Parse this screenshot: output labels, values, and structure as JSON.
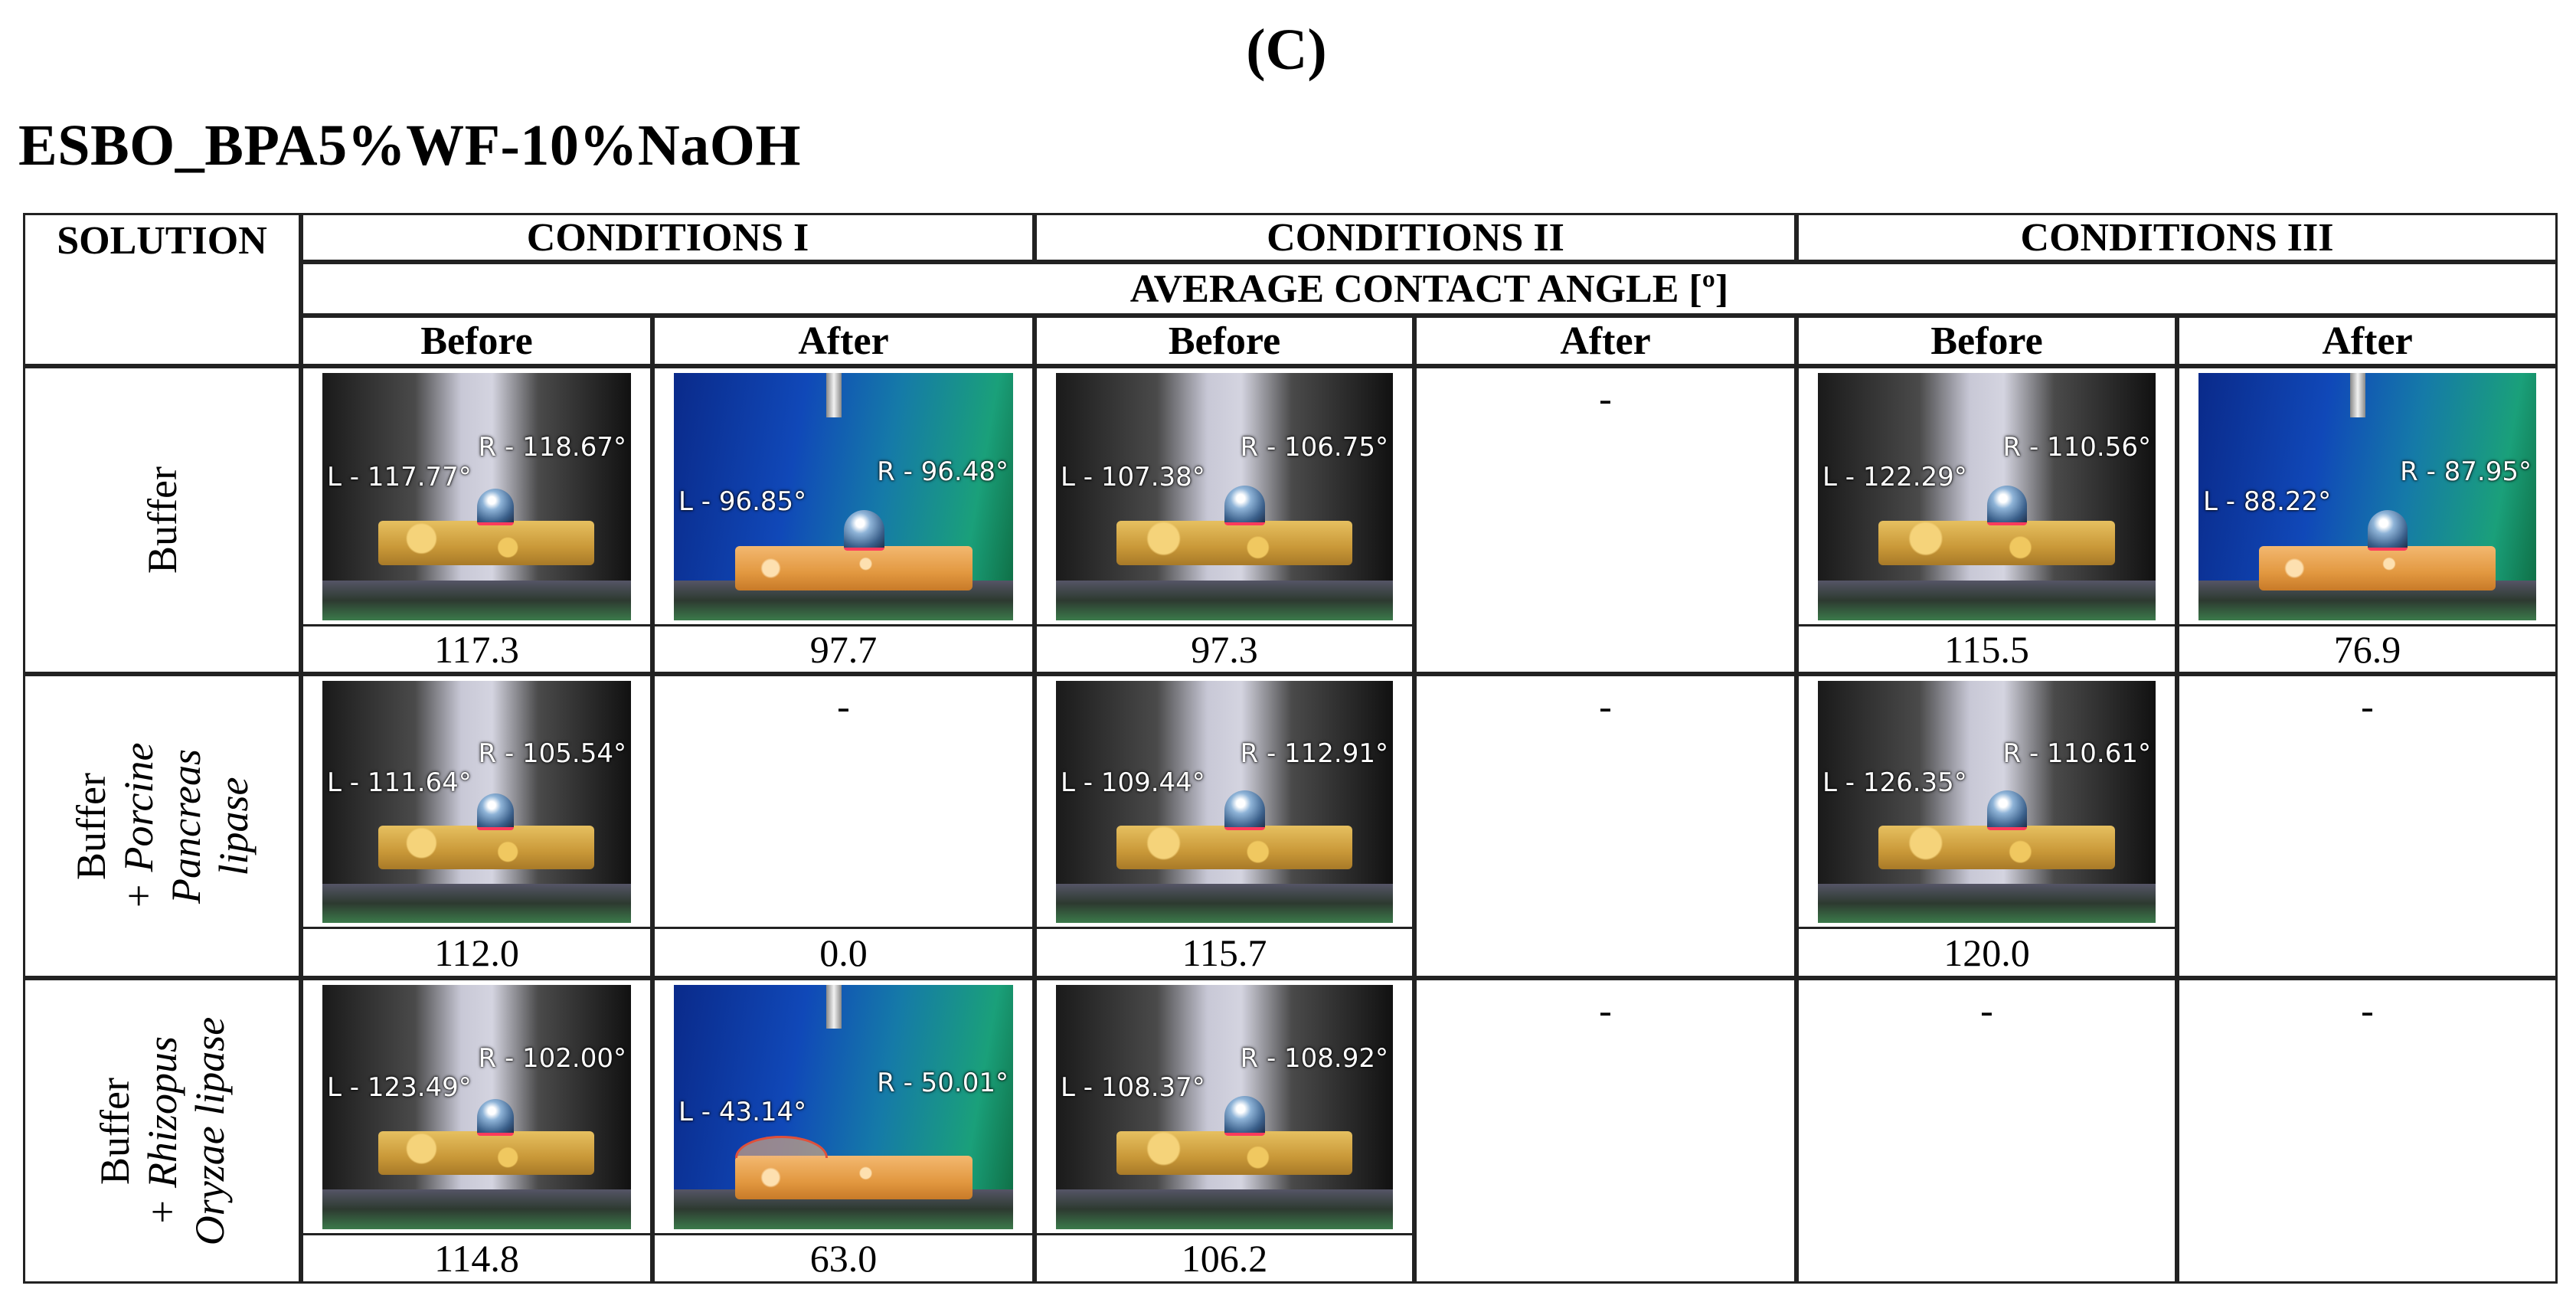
{
  "panel_label": "(C)",
  "title": "ESBO_BPA5%WF-10%NaOH",
  "table": {
    "headers": {
      "solution": "SOLUTION",
      "conditions": [
        "CONDITIONS I",
        "CONDITIONS II",
        "CONDITIONS III"
      ],
      "metric": "AVERAGE CONTACT ANGLE [º]",
      "before": "Before",
      "after": "After"
    },
    "dash": "-",
    "rows": [
      {
        "solution_lines": [
          "Buffer"
        ],
        "cells": [
          {
            "image": {
              "bg": "grey",
              "left_angle": "L - 117.77°",
              "right_angle": "R - 118.67°"
            },
            "value": "117.3"
          },
          {
            "image": {
              "bg": "blue",
              "left_angle": "L - 96.85°",
              "right_angle": "R - 96.48°"
            },
            "value": "97.7"
          },
          {
            "image": {
              "bg": "grey",
              "left_angle": "L - 107.38°",
              "right_angle": "R - 106.75°"
            },
            "value": "97.3"
          },
          {
            "empty": true
          },
          {
            "image": {
              "bg": "grey",
              "left_angle": "L - 122.29°",
              "right_angle": "R - 110.56°"
            },
            "value": "115.5"
          },
          {
            "image": {
              "bg": "blue",
              "left_angle": "L - 88.22°",
              "right_angle": "R - 87.95°"
            },
            "value": "76.9"
          }
        ]
      },
      {
        "solution_lines": [
          "Buffer",
          "+ Porcine",
          "Pancreas",
          "lipase"
        ],
        "cells": [
          {
            "image": {
              "bg": "grey",
              "left_angle": "L - 111.64°",
              "right_angle": "R - 105.54°"
            },
            "value": "112.0"
          },
          {
            "dash_value": true,
            "value": "0.0"
          },
          {
            "image": {
              "bg": "grey",
              "left_angle": "L - 109.44°",
              "right_angle": "R - 112.91°"
            },
            "value": "115.7"
          },
          {
            "empty": true
          },
          {
            "image": {
              "bg": "grey",
              "left_angle": "L - 126.35°",
              "right_angle": "R - 110.61°"
            },
            "value": "120.0"
          },
          {
            "empty": true
          }
        ]
      },
      {
        "solution_lines": [
          "Buffer",
          "+ Rhizopus",
          "Oryzae lipase"
        ],
        "cells": [
          {
            "image": {
              "bg": "grey",
              "left_angle": "L - 123.49°",
              "right_angle": "R - 102.00°"
            },
            "value": "114.8"
          },
          {
            "image": {
              "bg": "blue",
              "left_angle": "L - 43.14°",
              "right_angle": "R - 50.01°"
            },
            "value": "63.0"
          },
          {
            "image": {
              "bg": "grey",
              "left_angle": "L - 108.37°",
              "right_angle": "R - 108.92°"
            },
            "value": "106.2"
          },
          {
            "empty": true
          },
          {
            "empty": true
          },
          {
            "empty": true
          }
        ]
      }
    ]
  }
}
